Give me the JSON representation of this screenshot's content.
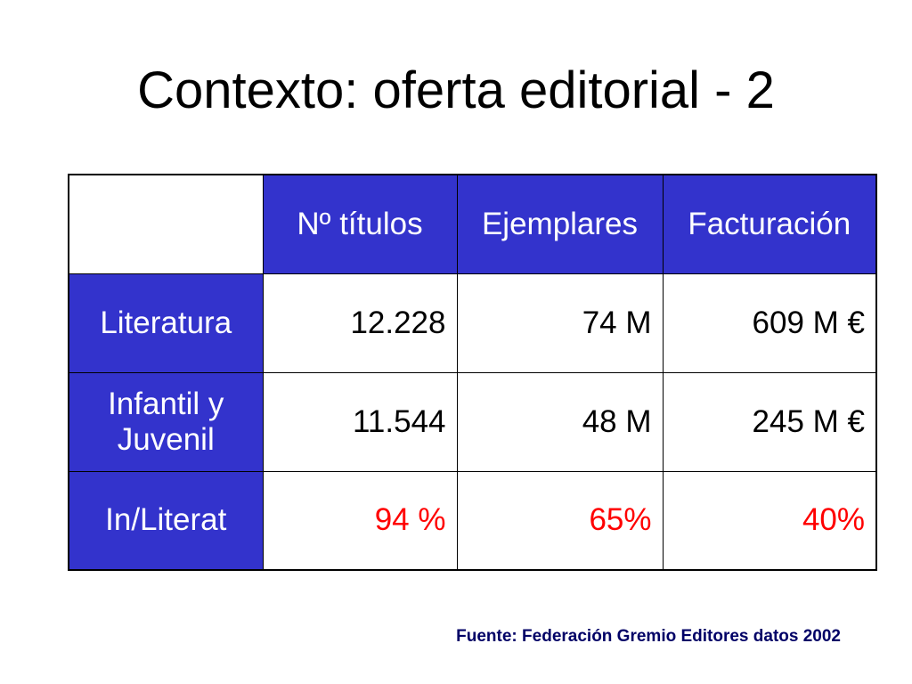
{
  "slide": {
    "title": "Contexto: oferta editorial - 2",
    "source": "Fuente: Federación Gremio Editores datos 2002"
  },
  "colors": {
    "header_fill": "#3333cc",
    "header_text": "#ffffff",
    "highlight_text": "#ff0000",
    "source_text": "#000066"
  },
  "table": {
    "columns": [
      "",
      "Nº títulos",
      "Ejemplares",
      "Facturación"
    ],
    "rows": [
      {
        "label": "Literatura",
        "titulos": "12.228",
        "ejemplares": "74 M",
        "facturacion": "609 M €"
      },
      {
        "label_line1": "Infantil y",
        "label_line2": "Juvenil",
        "titulos": "11.544",
        "ejemplares": "48 M",
        "facturacion": "245 M €"
      },
      {
        "label": "In/Literat",
        "titulos": "94 %",
        "ejemplares": "65%",
        "facturacion": "40%"
      }
    ]
  }
}
